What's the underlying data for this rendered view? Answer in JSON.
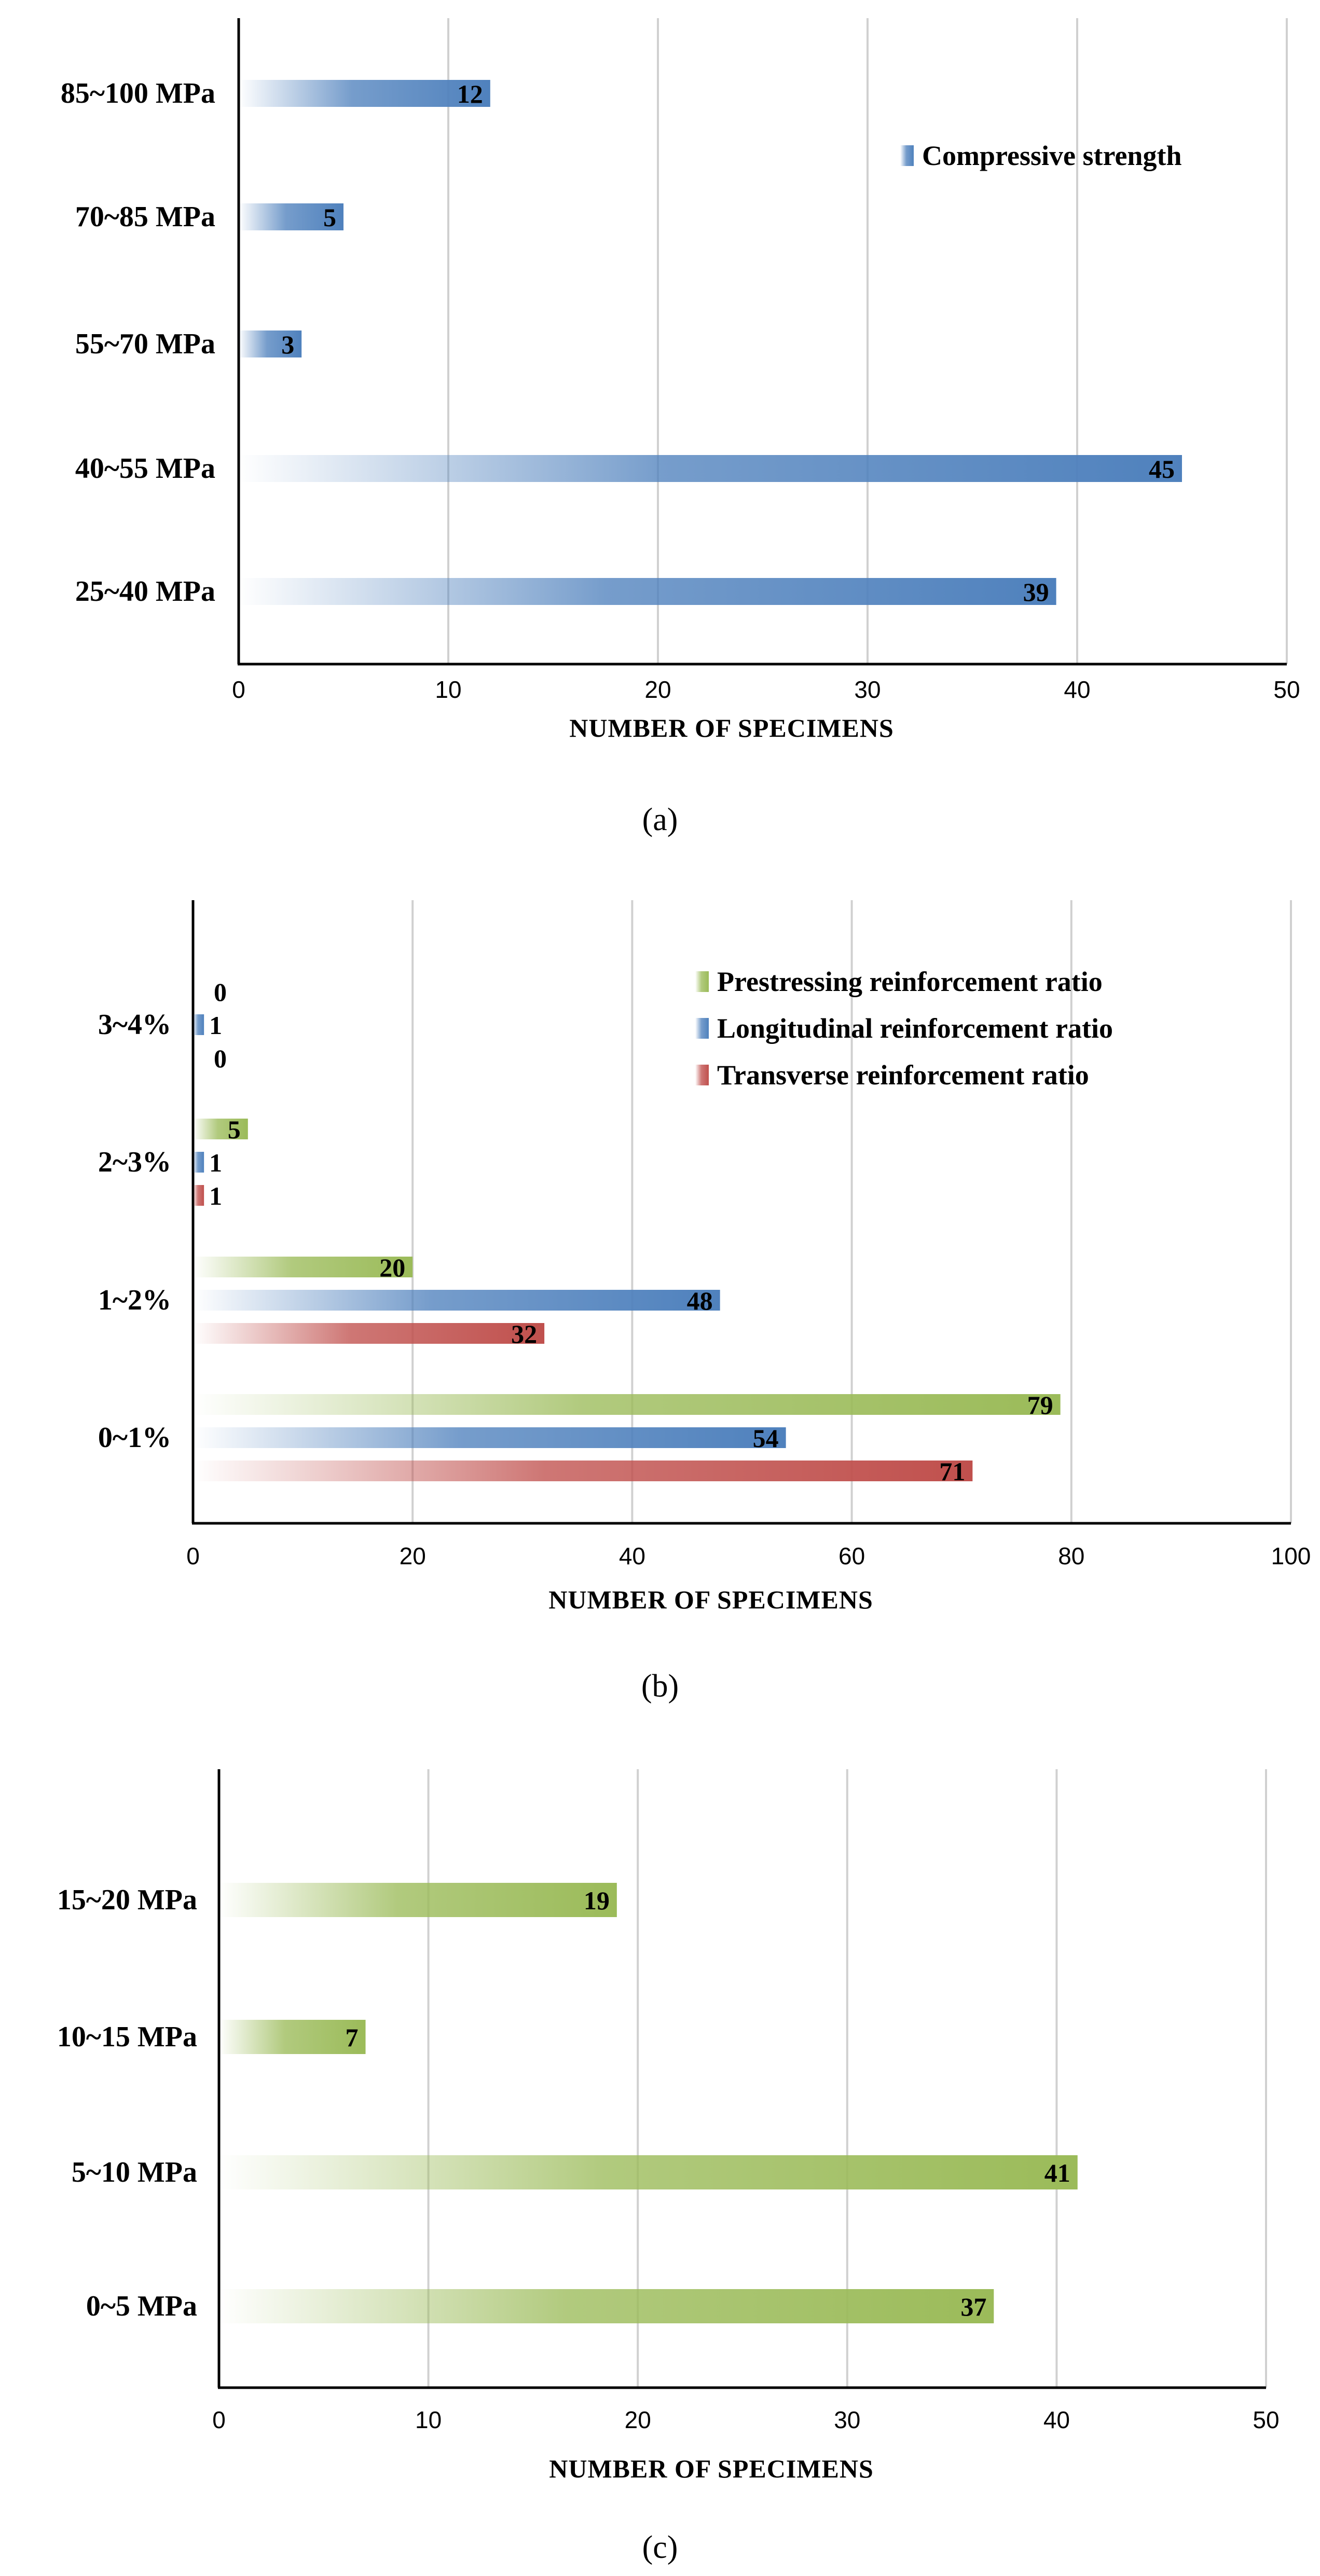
{
  "chart_data": [
    {
      "panel": "a",
      "type": "bar",
      "orientation": "horizontal",
      "caption": "(a)",
      "xlabel": "NUMBER OF SPECIMENS",
      "ylabel": "",
      "xlim": [
        0,
        50
      ],
      "xticks": [
        "0",
        "10",
        "20",
        "30",
        "40",
        "50"
      ],
      "grid": true,
      "legend_position": "top-right",
      "categories": [
        "25~40 MPa",
        "40~55 MPa",
        "55~70 MPa",
        "70~85 MPa",
        "85~100 MPa"
      ],
      "series": [
        {
          "name": "Compressive strength",
          "color": "#4F81BD",
          "values": [
            39,
            45,
            3,
            5,
            12
          ]
        }
      ]
    },
    {
      "panel": "b",
      "type": "bar",
      "orientation": "horizontal",
      "caption": "(b)",
      "xlabel": "NUMBER OF SPECIMENS",
      "ylabel": "",
      "xlim": [
        0,
        100
      ],
      "xticks": [
        "0",
        "20",
        "40",
        "60",
        "80",
        "100"
      ],
      "grid": true,
      "legend_position": "top-right",
      "categories": [
        "0~1%",
        "1~2%",
        "2~3%",
        "3~4%"
      ],
      "series": [
        {
          "name": "Prestressing reinforcement ratio",
          "color": "#9BBB59",
          "values": [
            79,
            20,
            5,
            0
          ]
        },
        {
          "name": "Longitudinal reinforcement ratio",
          "color": "#4F81BD",
          "values": [
            54,
            48,
            1,
            1
          ]
        },
        {
          "name": "Transverse reinforcement ratio",
          "color": "#C0504D",
          "values": [
            71,
            32,
            1,
            0
          ]
        }
      ]
    },
    {
      "panel": "c",
      "type": "bar",
      "orientation": "horizontal",
      "caption": "(c)",
      "xlabel": "NUMBER OF SPECIMENS",
      "ylabel": "",
      "xlim": [
        0,
        50
      ],
      "xticks": [
        "0",
        "10",
        "20",
        "30",
        "40",
        "50"
      ],
      "grid": true,
      "legend_position": "none",
      "categories": [
        "0~5 MPa",
        "5~10 MPa",
        "10~15 MPa",
        "15~20 MPa"
      ],
      "series": [
        {
          "name": "",
          "color": "#9BBB59",
          "values": [
            37,
            41,
            7,
            19
          ]
        }
      ]
    }
  ]
}
